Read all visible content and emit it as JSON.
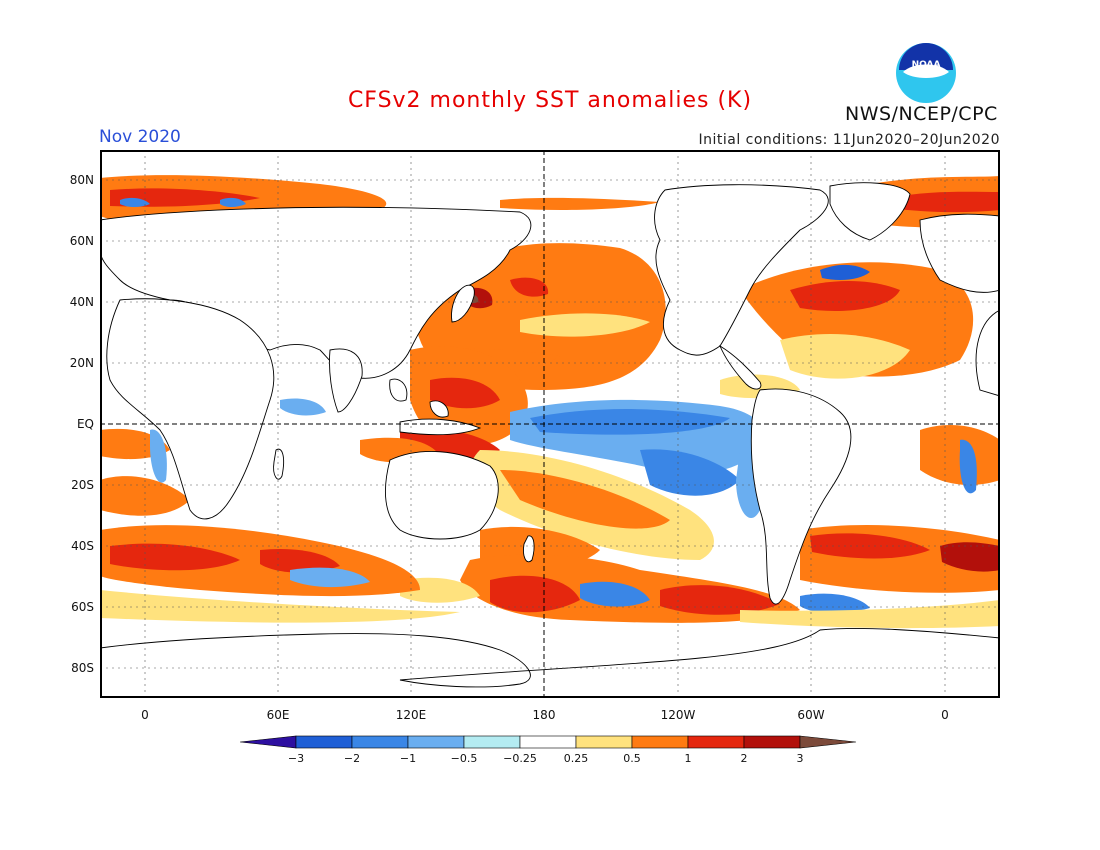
{
  "header": {
    "title": "CFSv2 monthly SST anomalies (K)",
    "month": "Nov 2020",
    "initial_conditions": "Initial conditions: 11Jun2020–20Jun2020",
    "agency": "NWS/NCEP/CPC",
    "logo_text": "NOAA"
  },
  "map": {
    "lat_labels": [
      "80N",
      "60N",
      "40N",
      "20N",
      "EQ",
      "20S",
      "40S",
      "60S",
      "80S"
    ],
    "lon_labels": [
      "0",
      "60E",
      "120E",
      "180",
      "120W",
      "60W",
      "0"
    ]
  },
  "colorbar": {
    "ticks": [
      "−3",
      "−2",
      "−1",
      "−0.5",
      "−0.25",
      "0.25",
      "0.5",
      "1",
      "2",
      "3"
    ],
    "colors": [
      "#2d0fa0",
      "#1f5fd6",
      "#3a86e6",
      "#6aaef0",
      "#b4ecf2",
      "#ffffff",
      "#ffe27e",
      "#ff7b12",
      "#e5270e",
      "#b2100b",
      "#7c4a3a"
    ]
  }
}
